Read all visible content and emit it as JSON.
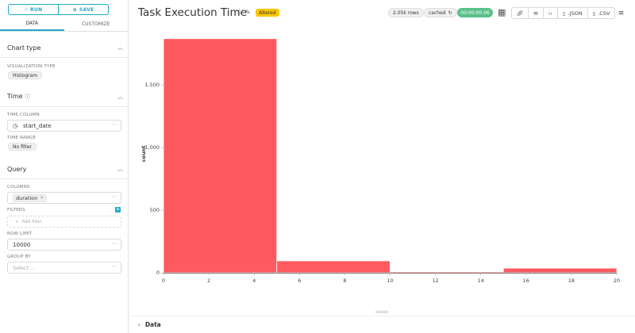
{
  "sidebar": {
    "run_label": "RUN",
    "save_label": "SAVE",
    "tabs": [
      {
        "label": "DATA"
      },
      {
        "label": "CUSTOMIZE"
      }
    ],
    "chart_type": {
      "title": "Chart type",
      "viz_label": "VISUALIZATION TYPE",
      "viz_value": "Histogram"
    },
    "time": {
      "title": "Time",
      "column_label": "TIME COLUMN",
      "column_value": "start_date",
      "range_label": "TIME RANGE",
      "range_value": "No filter"
    },
    "query": {
      "title": "Query",
      "columns_label": "COLUMNS",
      "column_tag": "duration",
      "filters_label": "FILTERS",
      "add_filter": "Add filter",
      "row_limit_label": "ROW LIMIT",
      "row_limit_value": "10000",
      "group_by_label": "GROUP BY",
      "group_by_placeholder": "Select ..."
    }
  },
  "header": {
    "title": "Task Execution Time",
    "altered": "Altered",
    "rows": "2.05k rows",
    "cached": "cached",
    "timer": "00:00:00.06",
    "json_label": ".JSON",
    "csv_label": ".CSV"
  },
  "footer": {
    "data_label": "Data"
  },
  "icons": {
    "run": "bolt-icon",
    "save": "plus-circle-icon",
    "info": "info-icon",
    "clock": "clock-icon",
    "star": "star-icon",
    "edit": "edit-icon",
    "refresh": "refresh-icon",
    "calendar": "calendar-icon",
    "link": "link-icon",
    "email": "email-icon",
    "embed": "code-icon",
    "file": "file-icon",
    "menu": "hamburger-icon"
  },
  "colors": {
    "accent": "#1fa8c9",
    "bar": "#ff5a5f",
    "altered": "#fcc700",
    "success": "#5ac189"
  },
  "chart_data": {
    "type": "bar",
    "bins": [
      [
        0,
        5
      ],
      [
        5,
        10
      ],
      [
        10,
        15
      ],
      [
        15,
        20
      ]
    ],
    "values": [
      1870,
      95,
      8,
      37
    ],
    "xlim": [
      0,
      20
    ],
    "ylim": [
      0,
      1900
    ],
    "xticks": [
      0,
      2,
      4,
      6,
      8,
      10,
      12,
      14,
      16,
      18,
      20
    ],
    "yticks": [
      0,
      500,
      1000,
      1500
    ],
    "ytick_labels": [
      "0",
      "500",
      "1,000",
      "1,500"
    ],
    "ylabel": "count",
    "xlabel": ""
  }
}
